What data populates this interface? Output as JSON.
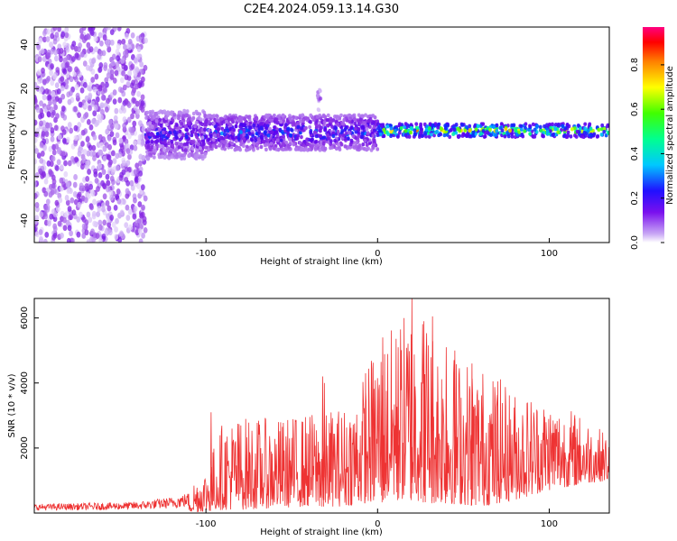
{
  "figure_title": "C2E4.2024.059.13.14.G30",
  "chart_data": [
    {
      "type": "heatmap",
      "title": "",
      "xlabel": "Height of straight line (km)",
      "ylabel": "Frequency (Hz)",
      "xlim": [
        -200,
        135
      ],
      "ylim": [
        -50,
        48
      ],
      "x_ticks": [
        -100,
        0,
        100
      ],
      "y_ticks": [
        -40,
        -20,
        0,
        20,
        40
      ],
      "colorbar": {
        "label": "Normalized spectral amplitude",
        "range": [
          0.0,
          0.97
        ],
        "ticks": [
          0.0,
          0.2,
          0.4,
          0.6,
          0.8
        ],
        "colormap": [
          "#ffffff",
          "#c9a8f5",
          "#8a2be2",
          "#5a00f0",
          "#0030ff",
          "#00c8ff",
          "#00ff80",
          "#40ff00",
          "#ffff00",
          "#ff8000",
          "#ff0000",
          "#ff0080"
        ]
      },
      "description_regions": [
        {
          "x_range": [
            -200,
            -135
          ],
          "freq_range": [
            -50,
            48
          ],
          "amplitude": 0.08
        },
        {
          "x_range": [
            -135,
            -100
          ],
          "freq_range": [
            -12,
            10
          ],
          "amplitude": 0.3
        },
        {
          "x_range": [
            -100,
            0
          ],
          "freq_range": [
            -8,
            8
          ],
          "amplitude": 0.35
        },
        {
          "x_range": [
            -35,
            -33
          ],
          "freq_range": [
            10,
            22
          ],
          "amplitude": 0.15
        },
        {
          "x_range": [
            0,
            135
          ],
          "freq_range": [
            -2,
            4
          ],
          "amplitude": 0.7
        }
      ]
    },
    {
      "type": "line",
      "title": "",
      "xlabel": "Height of straight line (km)",
      "ylabel": "SNR (10 * v/v)",
      "xlim": [
        -200,
        135
      ],
      "ylim": [
        0,
        6600
      ],
      "x_ticks": [
        -100,
        0,
        100
      ],
      "y_ticks": [
        2000,
        4000,
        6000
      ],
      "series": [
        {
          "color": "#ee3333",
          "envelope": {
            "x": [
              -200,
              -160,
              -140,
              -120,
              -110,
              -100,
              -90,
              -80,
              -60,
              -40,
              -20,
              -10,
              0,
              10,
              20,
              30,
              40,
              60,
              80,
              100,
              120,
              135
            ],
            "min": [
              0,
              0,
              0,
              0,
              0,
              50,
              100,
              100,
              150,
              200,
              200,
              300,
              300,
              400,
              400,
              300,
              300,
              200,
              400,
              700,
              900,
              1000
            ],
            "max": [
              400,
              450,
              500,
              700,
              900,
              1400,
              2900,
              3000,
              2900,
              3100,
              3300,
              4000,
              5400,
              5800,
              6600,
              6100,
              5100,
              4600,
              3800,
              3600,
              3000,
              2400
            ]
          },
          "peaks": [
            {
              "x": -97,
              "y": 3100
            },
            {
              "x": -32,
              "y": 4200
            },
            {
              "x": -31,
              "y": 4000
            },
            {
              "x": -7,
              "y": 4300
            },
            {
              "x": 3,
              "y": 5400
            },
            {
              "x": 12,
              "y": 5100
            },
            {
              "x": 20,
              "y": 6600
            },
            {
              "x": 27,
              "y": 5900
            },
            {
              "x": 32,
              "y": 6050
            },
            {
              "x": 40,
              "y": 5100
            },
            {
              "x": 45,
              "y": 5000
            },
            {
              "x": 55,
              "y": 4600
            },
            {
              "x": 70,
              "y": 4050
            },
            {
              "x": 115,
              "y": 2900
            }
          ]
        }
      ]
    }
  ]
}
